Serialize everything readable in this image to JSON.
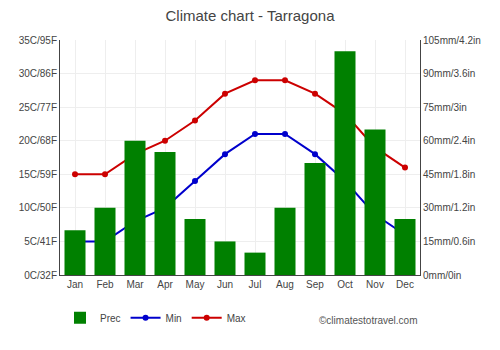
{
  "chart_data": {
    "type": "combo",
    "title": "Climate chart - Tarragona",
    "categories": [
      "Jan",
      "Feb",
      "Mar",
      "Apr",
      "May",
      "Jun",
      "Jul",
      "Aug",
      "Sep",
      "Oct",
      "Nov",
      "Dec"
    ],
    "series": [
      {
        "name": "Prec",
        "type": "bar",
        "axis": "y2",
        "color": "#008000",
        "values": [
          20,
          30,
          60,
          55,
          25,
          15,
          10,
          30,
          50,
          100,
          65,
          25
        ]
      },
      {
        "name": "Min",
        "type": "line",
        "marker": "circle",
        "color": "#0000cc",
        "values": [
          5,
          5,
          8,
          10,
          14,
          18,
          21,
          21,
          18,
          14,
          9,
          6
        ]
      },
      {
        "name": "Max",
        "type": "line",
        "marker": "circle",
        "color": "#cc0000",
        "values": [
          15,
          15,
          18,
          20,
          23,
          27,
          29,
          29,
          27,
          24,
          19,
          16
        ]
      }
    ],
    "ylim": [
      0,
      35
    ],
    "yticks": [
      {
        "value": 0,
        "label": "0C/32F"
      },
      {
        "value": 5,
        "label": "5C/41F"
      },
      {
        "value": 10,
        "label": "10C/50F"
      },
      {
        "value": 15,
        "label": "15C/59F"
      },
      {
        "value": 20,
        "label": "20C/68F"
      },
      {
        "value": 25,
        "label": "25C/77F"
      },
      {
        "value": 30,
        "label": "30C/86F"
      },
      {
        "value": 35,
        "label": "35C/95F"
      }
    ],
    "y2lim": [
      0,
      105
    ],
    "y2ticks": [
      {
        "value": 0,
        "label": "0mm/0in"
      },
      {
        "value": 15,
        "label": "15mm/0.6in"
      },
      {
        "value": 30,
        "label": "30mm/1.2in"
      },
      {
        "value": 45,
        "label": "45mm/1.8in"
      },
      {
        "value": 60,
        "label": "60mm/2.4in"
      },
      {
        "value": 75,
        "label": "75mm/3in"
      },
      {
        "value": 90,
        "label": "90mm/3.6in"
      },
      {
        "value": 105,
        "label": "105mm/4.2in"
      }
    ],
    "grid": true,
    "legend": "bottom",
    "annotations": [
      "©climatestotravel.com"
    ]
  }
}
